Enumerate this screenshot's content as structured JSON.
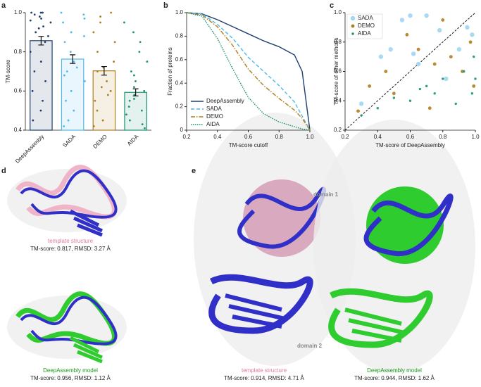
{
  "chart_data": [
    {
      "type": "bar",
      "panel": "a",
      "ylabel": "TM-score",
      "categories": [
        "DeepAssembly",
        "SADA",
        "DEMO",
        "AIDA"
      ],
      "values": [
        0.857,
        0.763,
        0.703,
        0.593
      ],
      "errors": [
        0.022,
        0.022,
        0.022,
        0.018
      ],
      "colors": [
        "#1f3f6e",
        "#4fb8ec",
        "#b07d1e",
        "#1a9370"
      ],
      "points": [
        [
          1,
          1,
          1,
          0.99,
          0.98,
          0.97,
          0.96,
          0.95,
          0.93,
          0.92,
          0.9,
          0.88,
          0.85,
          0.8,
          0.75,
          0.7,
          0.65,
          0.6,
          0.55,
          0.5,
          0.45
        ],
        [
          1,
          0.99,
          0.97,
          0.95,
          0.9,
          0.88,
          0.85,
          0.8,
          0.75,
          0.72,
          0.7,
          0.68,
          0.65,
          0.6,
          0.55,
          0.5,
          0.45,
          0.42
        ],
        [
          1,
          0.98,
          0.95,
          0.9,
          0.85,
          0.8,
          0.75,
          0.72,
          0.7,
          0.65,
          0.62,
          0.6,
          0.58,
          0.55,
          0.5,
          0.45,
          0.42
        ],
        [
          0.95,
          0.9,
          0.85,
          0.8,
          0.75,
          0.7,
          0.68,
          0.65,
          0.62,
          0.6,
          0.58,
          0.56,
          0.55,
          0.52,
          0.5,
          0.48,
          0.45,
          0.43,
          0.41
        ]
      ],
      "ylim": [
        0.4,
        1.0
      ],
      "yticks": [
        0.4,
        0.6,
        0.8,
        {
          "value": 1.0,
          "label": "1.0"
        }
      ]
    },
    {
      "type": "line",
      "panel": "b",
      "xlabel": "TM-score cutoff",
      "ylabel": "Fraction of proteins",
      "x": [
        0.2,
        0.3,
        0.4,
        0.5,
        0.6,
        0.7,
        0.8,
        0.9,
        0.95,
        1.0
      ],
      "series": [
        {
          "name": "DeepAssembly",
          "color": "#1f3f6e",
          "style": "solid",
          "values": [
            1,
            0.99,
            0.94,
            0.88,
            0.82,
            0.76,
            0.71,
            0.64,
            0.5,
            0.0
          ]
        },
        {
          "name": "SADA",
          "color": "#4fb8ec",
          "style": "dashed",
          "values": [
            1,
            0.99,
            0.9,
            0.78,
            0.62,
            0.5,
            0.38,
            0.24,
            0.12,
            0.0
          ]
        },
        {
          "name": "DEMO",
          "color": "#b07d1e",
          "style": "dashdot",
          "values": [
            1,
            0.98,
            0.88,
            0.72,
            0.52,
            0.38,
            0.27,
            0.17,
            0.1,
            0.0
          ]
        },
        {
          "name": "AIDA",
          "color": "#1a9370",
          "style": "dotted",
          "values": [
            1,
            0.97,
            0.78,
            0.52,
            0.28,
            0.14,
            0.07,
            0.03,
            0.01,
            0.0
          ]
        }
      ],
      "xlim": [
        0.2,
        1.0
      ],
      "xticks": [
        0.2,
        0.4,
        0.6,
        0.8,
        {
          "value": 1.0,
          "label": "1.0"
        }
      ],
      "ylim": [
        0,
        1.0
      ],
      "yticks": [
        0,
        0.2,
        0.4,
        0.6,
        0.8,
        {
          "value": 1.0,
          "label": "1.0"
        }
      ],
      "legend": "lower-left"
    },
    {
      "type": "scatter",
      "panel": "c",
      "xlabel": "TM-score of DeepAssembly",
      "ylabel": "TM-score of other methods",
      "series": [
        {
          "name": "SADA",
          "color": "#9fd6f2",
          "size": 3.2,
          "x": [
            0.3,
            0.42,
            0.48,
            0.55,
            0.6,
            0.62,
            0.65,
            0.7,
            0.78,
            0.82,
            0.9,
            0.95,
            0.98
          ],
          "values": [
            0.38,
            0.7,
            0.75,
            0.95,
            0.98,
            0.72,
            0.65,
            0.98,
            0.88,
            0.55,
            0.75,
            0.9,
            0.85
          ]
        },
        {
          "name": "DEMO",
          "color": "#b07d1e",
          "size": 2.4,
          "x": [
            0.28,
            0.35,
            0.45,
            0.5,
            0.58,
            0.65,
            0.72,
            0.75,
            0.8,
            0.85,
            0.92,
            0.97,
            0.99
          ],
          "values": [
            0.33,
            0.5,
            0.6,
            0.45,
            0.85,
            0.75,
            0.35,
            0.65,
            0.95,
            0.7,
            0.6,
            0.8,
            0.5
          ]
        },
        {
          "name": "AIDA",
          "color": "#1a9370",
          "size": 1.7,
          "x": [
            0.3,
            0.4,
            0.5,
            0.6,
            0.66,
            0.7,
            0.75,
            0.8,
            0.88,
            0.93,
            0.98,
            0.99,
            1.0
          ],
          "values": [
            0.3,
            0.35,
            0.42,
            0.4,
            0.48,
            0.5,
            0.45,
            0.55,
            0.38,
            0.6,
            0.45,
            0.7,
            0.55
          ]
        }
      ],
      "xlim": [
        0.2,
        1.0
      ],
      "xticks": [
        0.2,
        0.4,
        0.6,
        0.8,
        {
          "value": 1.0,
          "label": "1.0"
        }
      ],
      "ylim": [
        0.2,
        1.0
      ],
      "yticks": [
        0.2,
        0.4,
        0.6,
        0.8,
        {
          "value": 1.0,
          "label": "1.0"
        }
      ],
      "diagonal": true,
      "legend": "upper-left"
    }
  ],
  "structures": {
    "d": {
      "panel": "d",
      "top_caption": "template structure",
      "top_scores": "TM-score: 0.817, RMSD: 3.27 Å",
      "bottom_caption": "DeepAssembly model",
      "bottom_scores": "TM-score: 0.956, RMSD: 1.12 Å"
    },
    "e": {
      "panel": "e",
      "domain1": "domain 1",
      "domain2": "domain 2",
      "left_caption": "template structure",
      "left_scores": "TM-score: 0.914, RMSD: 4.71 Å",
      "right_caption": "DeepAssembly model",
      "right_scores": "TM-score: 0.944, RMSD: 1.62 Å"
    }
  }
}
